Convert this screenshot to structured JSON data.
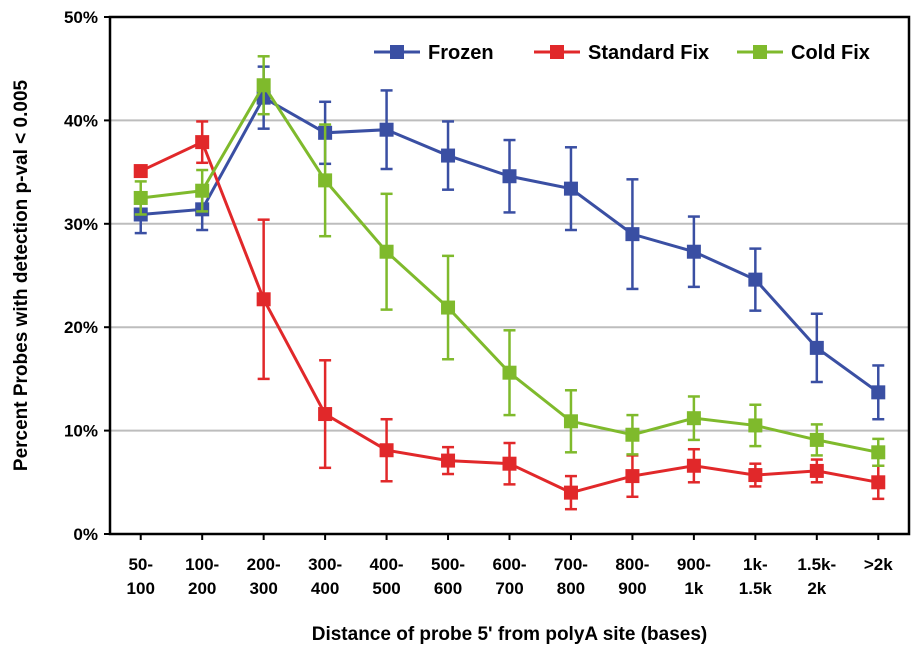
{
  "chart_data": {
    "type": "line",
    "title": "",
    "xlabel": "Distance of probe 5' from polyA site (bases)",
    "ylabel": "Percent Probes with detection p-val < 0.005",
    "ylim": [
      0,
      50
    ],
    "y_ticks": [
      "0%",
      "10%",
      "20%",
      "30%",
      "40%",
      "50%"
    ],
    "y_tick_values": [
      0,
      10,
      20,
      30,
      40,
      50
    ],
    "grid": "horizontal",
    "legend_position": "top-right",
    "categories": [
      [
        "50-",
        "100"
      ],
      [
        "100-",
        "200"
      ],
      [
        "200-",
        "300"
      ],
      [
        "300-",
        "400"
      ],
      [
        "400-",
        "500"
      ],
      [
        "500-",
        "600"
      ],
      [
        "600-",
        "700"
      ],
      [
        "700-",
        "800"
      ],
      [
        "800-",
        "900"
      ],
      [
        "900-",
        "1k"
      ],
      [
        "1k-",
        "1.5k"
      ],
      [
        "1.5k-",
        "2k"
      ],
      [
        ">2k"
      ]
    ],
    "series": [
      {
        "name": "Frozen",
        "color": "#3a4fa3",
        "values": [
          30.9,
          31.4,
          42.2,
          38.8,
          39.1,
          36.6,
          34.6,
          33.4,
          29.0,
          27.3,
          24.6,
          18.0,
          13.7
        ],
        "errors": [
          1.8,
          2.0,
          3.0,
          3.0,
          3.8,
          3.3,
          3.5,
          4.0,
          5.3,
          3.4,
          3.0,
          3.3,
          2.6
        ]
      },
      {
        "name": "Standard Fix",
        "color": "#e1282a",
        "values": [
          35.1,
          37.9,
          22.7,
          11.6,
          8.1,
          7.1,
          6.8,
          4.0,
          5.6,
          6.6,
          5.7,
          6.1,
          5.0
        ],
        "errors": [
          0.0,
          2.0,
          7.7,
          5.2,
          3.0,
          1.3,
          2.0,
          1.6,
          2.0,
          1.6,
          1.1,
          1.1,
          1.6
        ]
      },
      {
        "name": "Cold Fix",
        "color": "#7fba2c",
        "values": [
          32.5,
          33.2,
          43.4,
          34.2,
          27.3,
          21.9,
          15.6,
          10.9,
          9.6,
          11.2,
          10.5,
          9.1,
          7.9
        ],
        "errors": [
          1.6,
          2.0,
          2.8,
          5.4,
          5.6,
          5.0,
          4.1,
          3.0,
          1.9,
          2.1,
          2.0,
          1.5,
          1.3
        ]
      }
    ]
  }
}
